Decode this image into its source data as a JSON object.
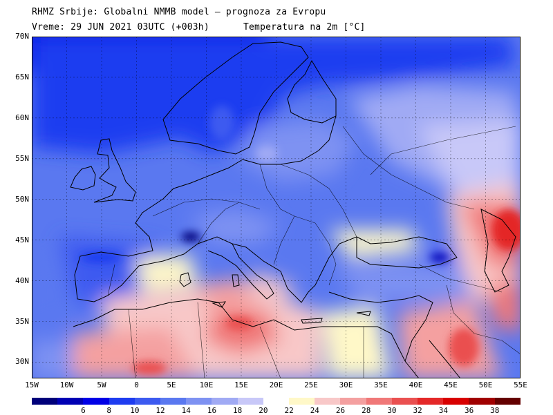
{
  "header": {
    "line1": "RHMZ Srbije: Globalni NMMB model – prognoza za Evropu",
    "line2": "Vreme: 29 JUN 2021 03UTC (+003h)",
    "variable": "Temperatura na 2m [°C]"
  },
  "map": {
    "lat_labels": [
      "70N",
      "65N",
      "60N",
      "55N",
      "50N",
      "45N",
      "40N",
      "35N",
      "30N"
    ],
    "lon_labels": [
      "15W",
      "10W",
      "5W",
      "0",
      "5E",
      "10E",
      "15E",
      "20E",
      "25E",
      "30E",
      "35E",
      "40E",
      "45E",
      "50E",
      "55E"
    ],
    "lat_values": [
      70,
      65,
      60,
      55,
      50,
      45,
      40,
      35,
      30
    ],
    "lon_values": [
      -15,
      -10,
      -5,
      0,
      5,
      10,
      15,
      20,
      25,
      30,
      35,
      40,
      45,
      50,
      55
    ],
    "lat_range": [
      28,
      70
    ],
    "lon_range": [
      -15,
      55
    ],
    "grid": true
  },
  "colorbar": {
    "labels": [
      "6",
      "8",
      "10",
      "12",
      "14",
      "16",
      "18",
      "20",
      "22",
      "24",
      "26",
      "28",
      "30",
      "32",
      "34",
      "36",
      "38"
    ],
    "colors": [
      "#00007a",
      "#0000b4",
      "#0000e6",
      "#1e3cf0",
      "#3c5af0",
      "#5a78f0",
      "#7e92f2",
      "#a0aaf4",
      "#c8c8f8",
      "#ffffff",
      "#fff8c8",
      "#f8c8c8",
      "#f4a0a0",
      "#f07878",
      "#ea5050",
      "#e42828",
      "#d80000",
      "#a00000",
      "#640000"
    ]
  }
}
